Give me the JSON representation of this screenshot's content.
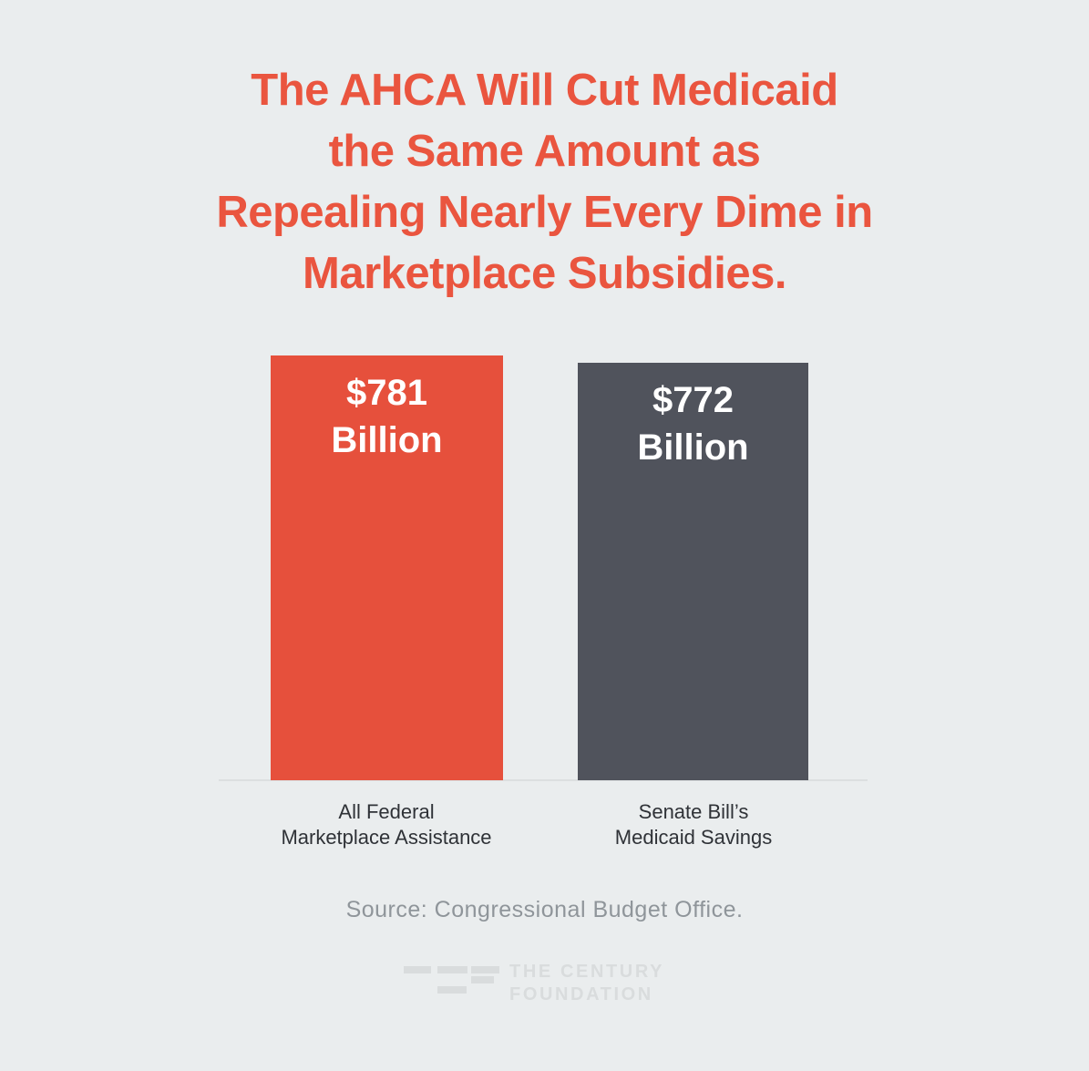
{
  "page": {
    "background_color": "#eaedee"
  },
  "title": {
    "color": "#ea553f",
    "lines": [
      "The AHCA Will Cut Medicaid",
      "the Same Amount as",
      "Repealing Nearly Every Dime in",
      "Marketplace Subsidies."
    ]
  },
  "chart_data": {
    "type": "bar",
    "title": "The AHCA Will Cut Medicaid the Same Amount as Repealing Nearly Every Dime in Marketplace Subsidies.",
    "categories": [
      "All Federal Marketplace Assistance",
      "Senate Bill’s Medicaid Savings"
    ],
    "values": [
      781,
      772
    ],
    "unit": "billion USD",
    "value_labels": [
      "$781 Billion",
      "$772 Billion"
    ],
    "bar_colors": [
      "#e6503c",
      "#50535c"
    ],
    "xlabel": "",
    "ylabel": "",
    "ylim": [
      0,
      800
    ],
    "grid": false,
    "legend": false,
    "source": "Source: Congressional Budget Office."
  },
  "bars": [
    {
      "value_line1": "$781",
      "value_line2": "Billion",
      "label_line1": "All Federal",
      "label_line2": "Marketplace Assistance",
      "color": "#e6503c"
    },
    {
      "value_line1": "$772",
      "value_line2": "Billion",
      "label_line1": "Senate Bill’s",
      "label_line2": "Medicaid Savings",
      "color": "#50535c"
    }
  ],
  "footer": {
    "source": "Source: Congressional Budget Office.",
    "logo_line1": "THE CENTURY",
    "logo_line2": "FOUNDATION",
    "logo_color": "#d9dcdd"
  }
}
